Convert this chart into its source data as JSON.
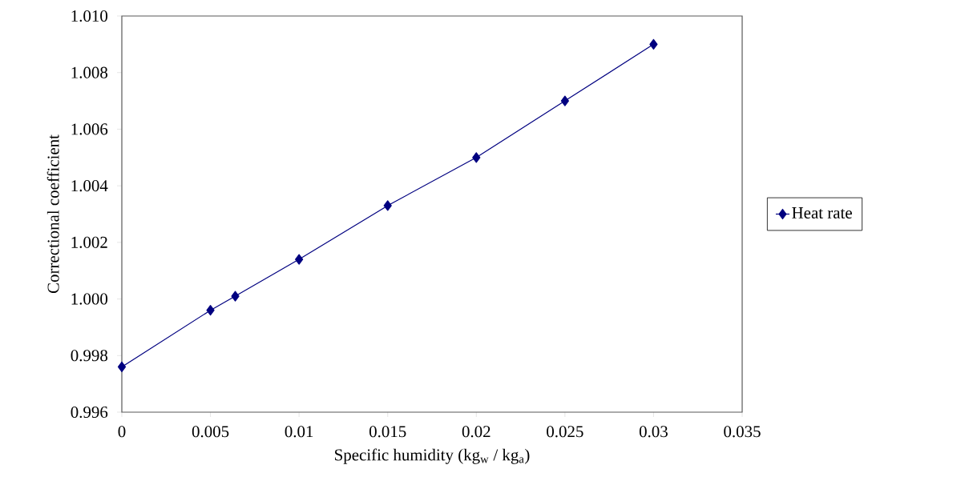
{
  "chart_data": {
    "type": "line",
    "xlabel": "Specific humidity (kg$_{w}$ / kg$_{a}$)",
    "ylabel": "Correctional coefficient",
    "series": [
      {
        "name": "Heat rate",
        "color": "#000080",
        "x": [
          0,
          0.005,
          0.0064,
          0.01,
          0.015,
          0.02,
          0.025,
          0.03
        ],
        "values": [
          0.9976,
          0.9996,
          1.0001,
          1.0014,
          1.0033,
          1.005,
          1.007,
          1.009
        ]
      }
    ],
    "xlim": [
      0,
      0.035
    ],
    "xticks": [
      0,
      0.005,
      0.01,
      0.015,
      0.02,
      0.025,
      0.03,
      0.035
    ],
    "ylim": [
      0.996,
      1.01
    ],
    "yticks": [
      {
        "value": 0.996,
        "label": "0.996"
      },
      {
        "value": 0.998,
        "label": "0.998"
      },
      {
        "value": 1.0,
        "label": "1.000"
      },
      {
        "value": 1.002,
        "label": "1.002"
      },
      {
        "value": 1.004,
        "label": "1.004"
      },
      {
        "value": 1.006,
        "label": "1.006"
      },
      {
        "value": 1.008,
        "label": "1.008"
      },
      {
        "value": 1.01,
        "label": "1.010"
      }
    ],
    "marker": "diamond",
    "line_style": "solid",
    "legend": "right",
    "grid": false
  }
}
